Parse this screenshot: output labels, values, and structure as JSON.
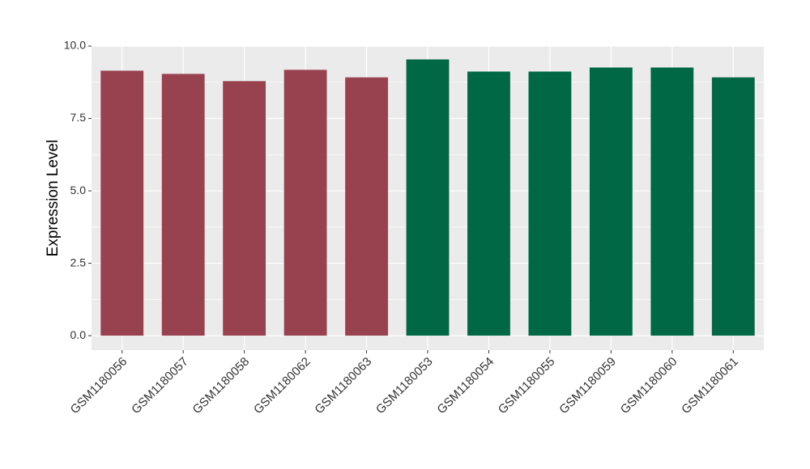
{
  "chart_data": {
    "type": "bar",
    "y_label": "Expression Level",
    "categories": [
      "GSM1180056",
      "GSM1180057",
      "GSM1180058",
      "GSM1180062",
      "GSM1180063",
      "GSM1180053",
      "GSM1180054",
      "GSM1180055",
      "GSM1180059",
      "GSM1180060",
      "GSM1180061"
    ],
    "values": [
      9.15,
      9.04,
      8.79,
      9.18,
      8.92,
      9.54,
      9.12,
      9.12,
      9.26,
      9.26,
      8.92
    ],
    "colors": [
      "#99424f",
      "#99424f",
      "#99424f",
      "#99424f",
      "#99424f",
      "#006845",
      "#006845",
      "#006845",
      "#006845",
      "#006845",
      "#006845"
    ],
    "ylim": [
      -0.5,
      10
    ],
    "yticks": [
      {
        "value": 0,
        "label": "0.0"
      },
      2.5,
      {
        "value": 5,
        "label": "5.0"
      },
      7.5,
      {
        "value": 10,
        "label": "10.0"
      }
    ],
    "grid": true
  }
}
